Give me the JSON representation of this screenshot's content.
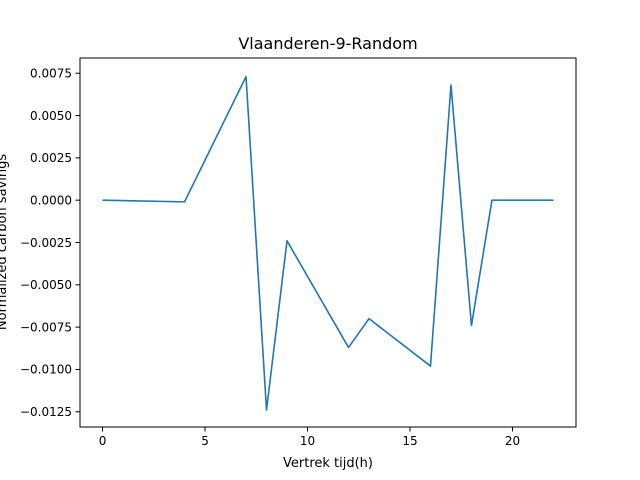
{
  "chart_data": {
    "type": "line",
    "title": "Vlaanderen-9-Random",
    "xlabel": "Vertrek tijd(h)",
    "ylabel": "Normalized carbon savings",
    "xlim": [
      -1.1,
      23.1
    ],
    "ylim": [
      -0.0134,
      0.0084
    ],
    "xticks": [
      0,
      5,
      10,
      15,
      20
    ],
    "xtick_labels": [
      "0",
      "5",
      "10",
      "15",
      "20"
    ],
    "yticks": [
      0.0075,
      0.005,
      0.0025,
      0.0,
      -0.0025,
      -0.005,
      -0.0075,
      -0.01,
      -0.0125
    ],
    "ytick_labels": [
      "0.0075",
      "0.0050",
      "0.0025",
      "0.0000",
      "−0.0025",
      "−0.0050",
      "−0.0075",
      "−0.0100",
      "−0.0125"
    ],
    "grid": false,
    "series": [
      {
        "color": "#1f77b4",
        "x": [
          0,
          4,
          7,
          8,
          9,
          12,
          13,
          16,
          17,
          18,
          19,
          22
        ],
        "y": [
          0.0,
          -0.0001,
          0.0073,
          -0.0124,
          -0.0024,
          -0.0087,
          -0.007,
          -0.0098,
          0.0068,
          -0.0074,
          0.0,
          0.0
        ]
      }
    ]
  }
}
